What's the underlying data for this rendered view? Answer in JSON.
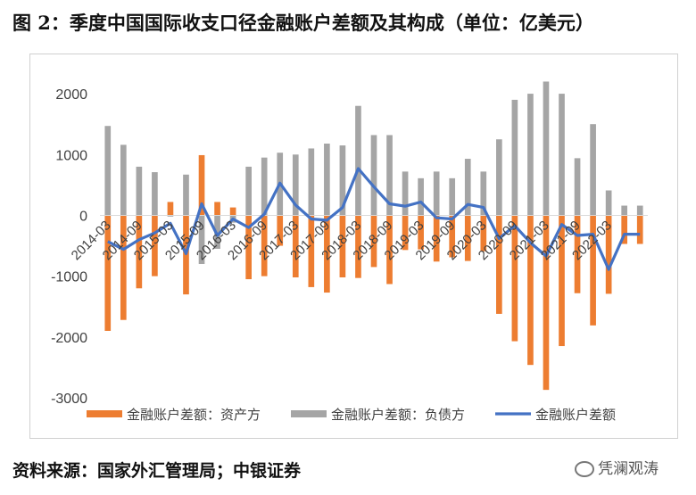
{
  "title": "图 2：季度中国国际收支口径金融账户差额及其构成（单位：亿美元）",
  "source": "资料来源：国家外汇管理局；中银证券",
  "watermark": "凭澜观涛",
  "colors": {
    "assets": "#ed7d31",
    "liabilities": "#a5a5a5",
    "net": "#4472c4"
  },
  "chart_data": {
    "type": "bar",
    "title": "图 2：季度中国国际收支口径金融账户差额及其构成（单位：亿美元）",
    "ylim": [
      -3000,
      2500
    ],
    "yticks": [
      -3000,
      -2000,
      -1000,
      0,
      1000,
      2000
    ],
    "grid": false,
    "legend_position": "bottom",
    "categories": [
      "2014-03",
      "2014-06",
      "2014-09",
      "2014-12",
      "2015-03",
      "2015-06",
      "2015-09",
      "2015-12",
      "2016-03",
      "2016-06",
      "2016-09",
      "2016-12",
      "2017-03",
      "2017-06",
      "2017-09",
      "2017-12",
      "2018-03",
      "2018-06",
      "2018-09",
      "2018-12",
      "2019-03",
      "2019-06",
      "2019-09",
      "2019-12",
      "2020-03",
      "2020-06",
      "2020-09",
      "2020-12",
      "2021-03",
      "2021-06",
      "2021-09",
      "2021-12",
      "2022-03",
      "2022-06",
      "2022-09"
    ],
    "x_tick_labels": [
      "2014-03",
      "2014-09",
      "2015-03",
      "2015-09",
      "2016-03",
      "2016-09",
      "2017-03",
      "2017-09",
      "2018-03",
      "2018-09",
      "2019-03",
      "2019-09",
      "2020-03",
      "2020-09",
      "2021-03",
      "2021-09",
      "2022-03"
    ],
    "series": [
      {
        "name": "金融账户差额：资产方",
        "type": "bar",
        "values": [
          -1900,
          -1720,
          -1200,
          -1000,
          220,
          -1300,
          990,
          220,
          130,
          -1050,
          -1000,
          -500,
          -1020,
          -1180,
          -1270,
          -1020,
          -1030,
          -850,
          -1130,
          -570,
          -560,
          -760,
          -690,
          -750,
          -590,
          -1620,
          -2070,
          -2460,
          -2870,
          -2150,
          -1280,
          -1810,
          -1290,
          -470,
          -470
        ]
      },
      {
        "name": "金融账户差额：负债方",
        "type": "bar",
        "values": [
          1470,
          1160,
          800,
          710,
          -20,
          670,
          -800,
          -550,
          -120,
          800,
          950,
          1030,
          1000,
          1100,
          1180,
          1150,
          1800,
          1320,
          1320,
          720,
          610,
          720,
          610,
          930,
          720,
          1250,
          1900,
          2000,
          2200,
          2000,
          940,
          1500,
          410,
          160,
          160
        ]
      },
      {
        "name": "金融账户差额",
        "type": "line",
        "values": [
          -430,
          -560,
          -400,
          -290,
          -130,
          -630,
          190,
          -330,
          -60,
          -200,
          20,
          530,
          170,
          -60,
          -80,
          130,
          770,
          470,
          190,
          150,
          220,
          -40,
          -60,
          180,
          130,
          -380,
          -170,
          -450,
          -670,
          -150,
          -330,
          -310,
          -890,
          -310,
          -310
        ]
      }
    ]
  }
}
